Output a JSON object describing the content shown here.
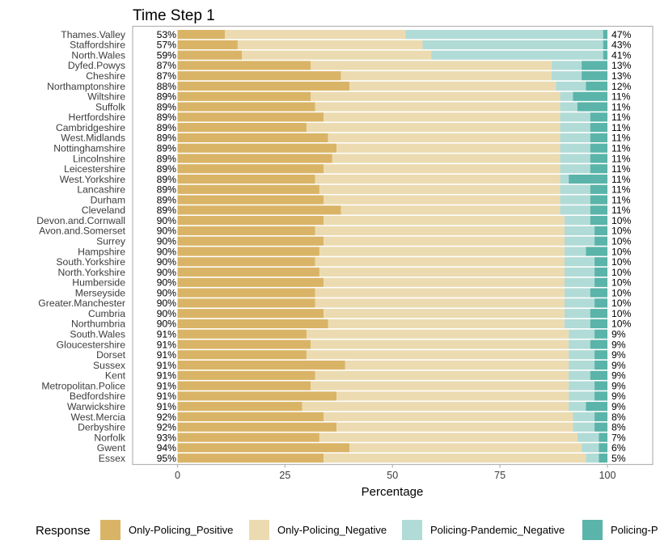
{
  "chart_data": {
    "type": "bar",
    "orientation": "horizontal",
    "stacked": true,
    "title": "Time Step 1",
    "xlabel": "Percentage",
    "ylabel": "",
    "xlim": [
      0,
      100
    ],
    "xticks": [
      "0",
      "25",
      "50",
      "75",
      "100"
    ],
    "legend": {
      "title": "Response",
      "position": "bottom"
    },
    "grid": false,
    "categories": [
      "Thames.Valley",
      "Staffordshire",
      "North.Wales",
      "Dyfed.Powys",
      "Cheshire",
      "Northamptonshire",
      "Wiltshire",
      "Suffolk",
      "Hertfordshire",
      "Cambridgeshire",
      "West.Midlands",
      "Nottinghamshire",
      "Lincolnshire",
      "Leicestershire",
      "West.Yorkshire",
      "Lancashire",
      "Durham",
      "Cleveland",
      "Devon.and.Cornwall",
      "Avon.and.Somerset",
      "Surrey",
      "Hampshire",
      "South.Yorkshire",
      "North.Yorkshire",
      "Humberside",
      "Merseyside",
      "Greater.Manchester",
      "Cumbria",
      "Northumbria",
      "South.Wales",
      "Gloucestershire",
      "Dorset",
      "Sussex",
      "Kent",
      "Metropolitan.Police",
      "Bedfordshire",
      "Warwickshire",
      "West.Mercia",
      "Derbyshire",
      "Norfolk",
      "Gwent",
      "Essex"
    ],
    "series": [
      {
        "name": "Only-Policing_Positive",
        "color": "#dab466",
        "values": [
          11,
          14,
          15,
          31,
          38,
          40,
          31,
          32,
          34,
          30,
          35,
          37,
          36,
          34,
          32,
          33,
          34,
          38,
          34,
          32,
          34,
          33,
          32,
          33,
          34,
          32,
          32,
          34,
          35,
          30,
          31,
          30,
          39,
          32,
          31,
          37,
          29,
          34,
          37,
          33,
          40,
          34
        ]
      },
      {
        "name": "Only-Policing_Negative",
        "color": "#ecdbb1",
        "values": [
          42,
          43,
          44,
          56,
          49,
          48,
          58,
          57,
          55,
          59,
          54,
          52,
          53,
          55,
          57,
          56,
          55,
          51,
          56,
          58,
          56,
          57,
          58,
          57,
          56,
          58,
          58,
          56,
          55,
          61,
          60,
          61,
          52,
          59,
          60,
          54,
          62,
          58,
          55,
          60,
          54,
          61
        ]
      },
      {
        "name": "Policing-Pandemic_Negative",
        "color": "#b1dbd7",
        "values": [
          46,
          42,
          40,
          7,
          7,
          7,
          3,
          4,
          7,
          7,
          7,
          7,
          7,
          7,
          2,
          7,
          7,
          7,
          6,
          7,
          7,
          5,
          7,
          7,
          7,
          6,
          7,
          6,
          6,
          6,
          5,
          6,
          6,
          5,
          6,
          6,
          4,
          5,
          5,
          5,
          4,
          3
        ]
      },
      {
        "name": "Policing-Pandemic_Positive",
        "color": "#5ab4a9",
        "values": [
          1,
          1,
          1,
          6,
          6,
          5,
          8,
          7,
          4,
          4,
          4,
          4,
          4,
          4,
          9,
          4,
          4,
          4,
          4,
          3,
          3,
          5,
          3,
          3,
          3,
          4,
          3,
          4,
          4,
          3,
          4,
          3,
          3,
          4,
          3,
          3,
          5,
          3,
          3,
          2,
          2,
          2
        ]
      }
    ],
    "left_labels": [
      "53%",
      "57%",
      "59%",
      "87%",
      "87%",
      "88%",
      "89%",
      "89%",
      "89%",
      "89%",
      "89%",
      "89%",
      "89%",
      "89%",
      "89%",
      "89%",
      "89%",
      "89%",
      "90%",
      "90%",
      "90%",
      "90%",
      "90%",
      "90%",
      "90%",
      "90%",
      "90%",
      "90%",
      "90%",
      "91%",
      "91%",
      "91%",
      "91%",
      "91%",
      "91%",
      "91%",
      "91%",
      "92%",
      "92%",
      "93%",
      "94%",
      "95%"
    ],
    "right_labels": [
      "47%",
      "43%",
      "41%",
      "13%",
      "13%",
      "12%",
      "11%",
      "11%",
      "11%",
      "11%",
      "11%",
      "11%",
      "11%",
      "11%",
      "11%",
      "11%",
      "11%",
      "11%",
      "10%",
      "10%",
      "10%",
      "10%",
      "10%",
      "10%",
      "10%",
      "10%",
      "10%",
      "10%",
      "10%",
      "9%",
      "9%",
      "9%",
      "9%",
      "9%",
      "9%",
      "9%",
      "9%",
      "8%",
      "8%",
      "7%",
      "6%",
      "5%"
    ]
  },
  "legend_labels": [
    "Only-Policing_Positive",
    "Only-Policing_Negative",
    "Policing-Pandemic_Negative",
    "Policing-P"
  ]
}
